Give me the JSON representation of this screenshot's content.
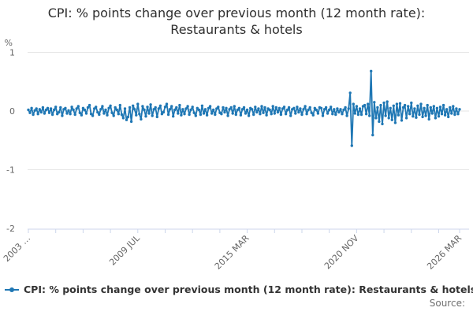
{
  "title": "CPI: % points change over previous month (12 month rate): Restaurants & hotels",
  "legend": {
    "label": "CPI: % points change over previous month (12 month rate): Restaurants & hotels"
  },
  "source_label": "Source:",
  "chart_data": {
    "type": "line",
    "title": "CPI: % points change over previous month (12 month rate): Restaurants & hotels",
    "unit": "%",
    "x_frequency": "monthly",
    "ylim": [
      -2,
      1
    ],
    "yticks": [
      1,
      0,
      -1,
      -2
    ],
    "grid": true,
    "legend_position": "bottom-left",
    "x_tick_labels": [
      {
        "pos": 0,
        "label": "2003 …"
      },
      {
        "pos": 68,
        "label": "2009 JUL"
      },
      {
        "pos": 136,
        "label": "2015 MAR"
      },
      {
        "pos": 204,
        "label": "2020 NOV"
      },
      {
        "pos": 268,
        "label": "2026 MAR"
      }
    ],
    "minor_tick_every_months": 17,
    "values": [
      0.02,
      -0.03,
      0.05,
      -0.06,
      0.01,
      0.04,
      -0.05,
      0.03,
      -0.02,
      0.06,
      -0.04,
      0.02,
      0.05,
      -0.03,
      0.04,
      -0.06,
      0.02,
      0.07,
      -0.05,
      -0.02,
      0.06,
      -0.08,
      0.03,
      0.05,
      -0.04,
      0.01,
      -0.05,
      0.07,
      0.02,
      -0.06,
      0.04,
      0.08,
      -0.03,
      -0.07,
      0.05,
      0.02,
      -0.04,
      0.06,
      0.1,
      -0.05,
      -0.08,
      0.04,
      0.07,
      -0.02,
      -0.06,
      0.03,
      0.08,
      -0.04,
      0.02,
      -0.07,
      0.05,
      0.09,
      -0.03,
      -0.08,
      0.06,
      0.02,
      -0.05,
      0.1,
      -0.06,
      -0.12,
      0.04,
      -0.15,
      -0.1,
      0.06,
      -0.18,
      0.09,
      0.03,
      -0.07,
      0.12,
      -0.05,
      -0.14,
      0.08,
      0.02,
      -0.09,
      0.07,
      -0.04,
      0.11,
      -0.08,
      0.03,
      0.06,
      -0.1,
      0.04,
      0.09,
      -0.05,
      -0.02,
      0.07,
      0.12,
      -0.06,
      0.03,
      0.08,
      -0.09,
      0.02,
      0.06,
      -0.04,
      0.1,
      -0.07,
      0.03,
      -0.05,
      0.04,
      0.08,
      -0.06,
      0.02,
      0.07,
      -0.03,
      -0.08,
      0.05,
      0.02,
      -0.06,
      0.09,
      -0.04,
      0.03,
      -0.07,
      0.05,
      0.08,
      -0.04,
      0.02,
      -0.06,
      0.04,
      0.07,
      -0.03,
      -0.05,
      0.06,
      -0.02,
      0.05,
      -0.08,
      0.03,
      0.06,
      -0.04,
      0.08,
      -0.06,
      0.02,
      0.05,
      -0.07,
      0.03,
      0.06,
      -0.04,
      0.02,
      -0.08,
      0.05,
      0.03,
      -0.06,
      0.07,
      -0.02,
      0.04,
      -0.05,
      0.08,
      -0.03,
      0.06,
      -0.07,
      0.04,
      0.02,
      -0.05,
      0.08,
      -0.04,
      0.06,
      -0.02,
      0.05,
      -0.06,
      0.04,
      0.07,
      -0.05,
      0.02,
      0.06,
      -0.08,
      0.03,
      0.05,
      -0.04,
      0.07,
      -0.02,
      0.04,
      -0.06,
      0.03,
      0.08,
      -0.05,
      0.02,
      0.06,
      -0.03,
      -0.07,
      0.05,
      0.02,
      -0.04,
      0.06,
      0.05,
      -0.08,
      0.03,
      0.06,
      -0.04,
      0.02,
      0.07,
      -0.05,
      0.03,
      -0.06,
      0.04,
      -0.02,
      0.03,
      -0.05,
      0.02,
      0.06,
      -0.08,
      0.04,
      0.31,
      -0.59,
      0.12,
      -0.04,
      0.08,
      -0.06,
      0.04,
      -0.06,
      0.08,
      0.1,
      -0.05,
      0.12,
      -0.08,
      0.68,
      -0.41,
      0.15,
      -0.12,
      0.06,
      -0.18,
      0.1,
      -0.22,
      0.14,
      -0.08,
      0.16,
      -0.12,
      0.05,
      -0.15,
      0.09,
      -0.2,
      0.12,
      -0.07,
      0.13,
      -0.16,
      0.06,
      0.1,
      -0.12,
      0.08,
      -0.05,
      0.14,
      -0.09,
      0.04,
      -0.11,
      0.09,
      -0.06,
      0.12,
      -0.1,
      0.05,
      -0.08,
      0.1,
      -0.14,
      0.06,
      -0.04,
      0.08,
      -0.12,
      0.05,
      -0.09,
      0.07,
      -0.05,
      0.1,
      -0.07,
      0.03,
      -0.1,
      0.06,
      -0.04,
      0.08,
      -0.06,
      0.04,
      -0.05,
      0.03
    ],
    "colors": {
      "line": "#1f77b4",
      "grid": "#e6e6e6",
      "axis": "#ccd6eb",
      "label": "#666666",
      "title": "#2e2e2e",
      "legend_text": "#333333",
      "source": "#6e6e6e"
    }
  }
}
